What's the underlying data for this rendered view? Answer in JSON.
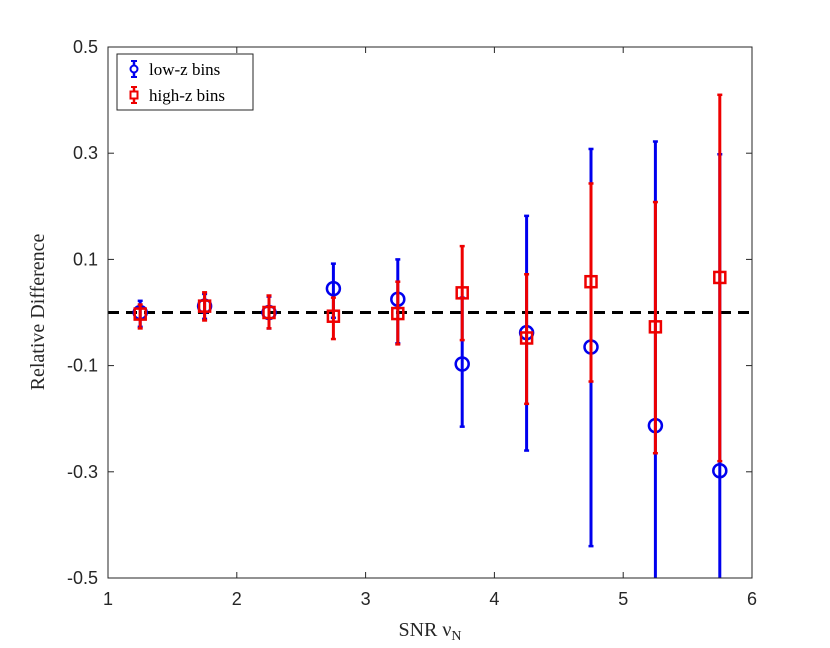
{
  "chart_data": {
    "type": "scatter",
    "title": "",
    "xlabel": "SNR ν",
    "xlabel_sub": "N",
    "ylabel": "Relative Difference",
    "xlim": [
      1,
      6
    ],
    "ylim": [
      -0.5,
      0.5
    ],
    "xticks": [
      1,
      2,
      3,
      4,
      5,
      6
    ],
    "xtick_labels": [
      "1",
      "2",
      "3",
      "4",
      "5",
      "6"
    ],
    "yticks": [
      -0.5,
      -0.3,
      -0.1,
      0.1,
      0.3,
      0.5
    ],
    "ytick_labels": [
      "-0.5",
      "-0.3",
      "-0.1",
      "0.1",
      "0.3",
      "0.5"
    ],
    "grid": false,
    "legend_position": "top-left",
    "reference_line": {
      "y": 0,
      "style": "dashed",
      "color": "#000000"
    },
    "series": [
      {
        "name": "low-z bins",
        "marker": "circle",
        "color": "#0000ee",
        "x": [
          1.25,
          1.75,
          2.25,
          2.75,
          3.25,
          3.75,
          4.25,
          4.75,
          5.25,
          5.75
        ],
        "y": [
          0.0,
          0.012,
          0.0,
          0.045,
          0.025,
          -0.097,
          -0.038,
          -0.065,
          -0.213,
          -0.298
        ],
        "lower": [
          -0.027,
          -0.012,
          -0.03,
          -0.01,
          -0.058,
          -0.215,
          -0.26,
          -0.44,
          -0.5,
          -0.5
        ],
        "upper": [
          0.022,
          0.035,
          0.03,
          0.092,
          0.1,
          0.028,
          0.182,
          0.308,
          0.322,
          0.298
        ]
      },
      {
        "name": "high-z bins",
        "marker": "square",
        "color": "#ee0000",
        "x": [
          1.25,
          1.75,
          2.25,
          2.75,
          3.25,
          3.75,
          4.25,
          4.75,
          5.25,
          5.75
        ],
        "y": [
          -0.003,
          0.012,
          0.0,
          -0.007,
          -0.002,
          0.037,
          -0.048,
          0.058,
          -0.027,
          0.066
        ],
        "lower": [
          -0.03,
          -0.015,
          -0.03,
          -0.05,
          -0.06,
          -0.052,
          -0.172,
          -0.13,
          -0.265,
          -0.28
        ],
        "upper": [
          0.015,
          0.038,
          0.032,
          0.028,
          0.058,
          0.125,
          0.072,
          0.243,
          0.208,
          0.41
        ]
      }
    ]
  }
}
